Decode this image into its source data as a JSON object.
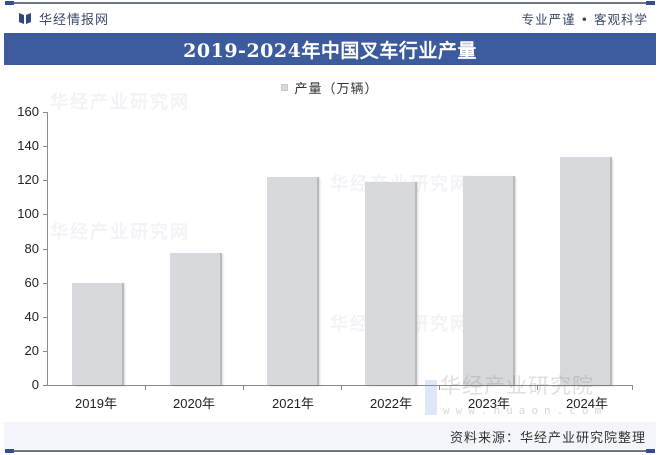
{
  "header": {
    "brand_name": "华经情报网",
    "slogan": "专业严谨 • 客观科学",
    "title": "2019-2024年中国叉车行业产量"
  },
  "legend": {
    "label": "产量（万辆）",
    "swatch_color": "#d6d8dc"
  },
  "watermarks": {
    "main": "华经产业研究院",
    "url": "www.huaon.com",
    "faint": [
      "华经产业研究网",
      "华经产业研究网",
      "华经产业研究网",
      "华经产业研究网"
    ]
  },
  "footer": {
    "source": "资料来源：华经产业研究院整理"
  },
  "colors": {
    "title_bar": "#3b5b9c",
    "bar_fill": "#d8d9dc",
    "axis": "#8a8a8a"
  },
  "y_axis": {
    "ticks": [
      "0",
      "20",
      "40",
      "60",
      "80",
      "100",
      "120",
      "140",
      "160"
    ]
  },
  "x_axis": {
    "labels": [
      "2019年",
      "2020年",
      "2021年",
      "2022年",
      "2023年",
      "2024年"
    ]
  },
  "chart_data": {
    "type": "bar",
    "title": "2019-2024年中国叉车行业产量",
    "categories": [
      "2019年",
      "2020年",
      "2021年",
      "2022年",
      "2023年",
      "2024年"
    ],
    "series": [
      {
        "name": "产量（万辆）",
        "values": [
          60,
          77.5,
          122,
          119,
          122.5,
          133.5
        ]
      }
    ],
    "xlabel": "",
    "ylabel": "",
    "ylim": [
      0,
      160
    ],
    "yticks": [
      0,
      20,
      40,
      60,
      80,
      100,
      120,
      140,
      160
    ],
    "grid": false,
    "legend_position": "top-center",
    "source": "资料来源：华经产业研究院整理"
  }
}
